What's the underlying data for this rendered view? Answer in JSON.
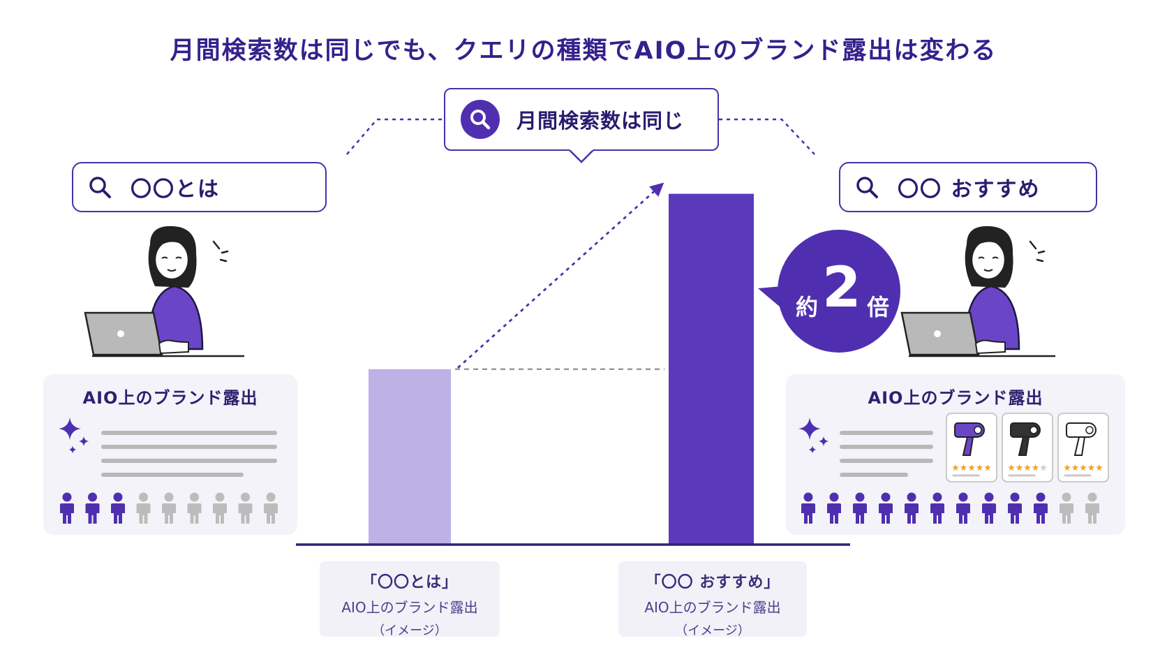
{
  "title": "月間検索数は同じでも、クエリの種類でAIO上のブランド露出は変わる",
  "callout": {
    "icon": "search-icon",
    "text": "月間検索数は同じ"
  },
  "left": {
    "query": "〇〇とは",
    "panel_title": "AIO上のブランド露出",
    "people_highlighted": 3,
    "people_total": 9
  },
  "right": {
    "query": "〇〇 おすすめ",
    "panel_title": "AIO上のブランド露出",
    "people_highlighted": 10,
    "people_total": 12,
    "products": [
      {
        "icon": "hair-dryer-icon",
        "color": "#6a45c8",
        "stars": 4.5
      },
      {
        "icon": "hair-dryer-icon",
        "color": "#333333",
        "stars": 4
      },
      {
        "icon": "hair-dryer-icon",
        "color": "#ffffff",
        "stars": 4.5
      }
    ]
  },
  "badge": {
    "prefix": "約",
    "value": "2",
    "suffix": "倍"
  },
  "chart_data": {
    "type": "bar",
    "categories": [
      "「〇〇とは」",
      "「〇〇 おすすめ」"
    ],
    "values": [
      1,
      2
    ],
    "colors": [
      "#bdb1e6",
      "#5b39bb"
    ],
    "title": "",
    "ylim": [
      0,
      2.07
    ]
  },
  "captions": [
    {
      "line1": "「〇〇とは」",
      "line2": "AIO上のブランド露出",
      "line3": "（イメージ）"
    },
    {
      "line1": "「〇〇 おすすめ」",
      "line2": "AIO上のブランド露出",
      "line3": "（イメージ）"
    }
  ],
  "colors": {
    "accent": "#4f2fb0",
    "light": "#bdb1e6",
    "dark": "#5b39bb",
    "gray": "#bcbcbc"
  }
}
